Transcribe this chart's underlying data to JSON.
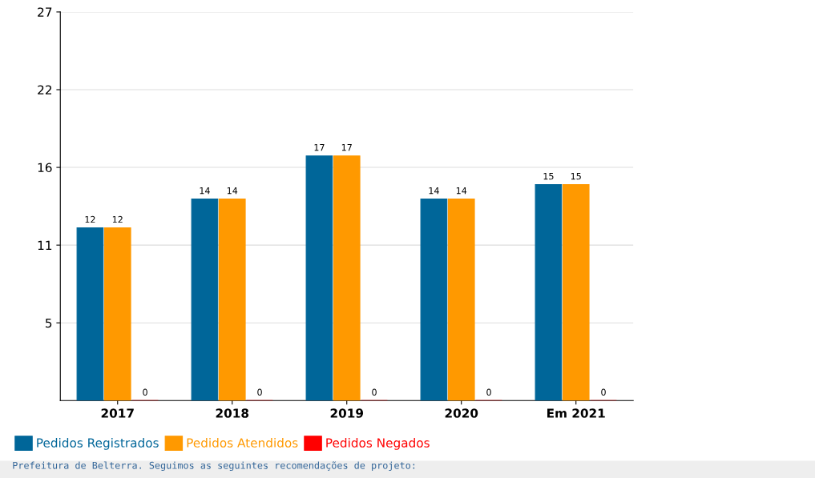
{
  "chart_data": {
    "type": "bar",
    "categories": [
      "2017",
      "2018",
      "2019",
      "2020",
      "Em 2021"
    ],
    "series": [
      {
        "name": "Pedidos Registrados",
        "color": "#006699",
        "values": [
          12,
          14,
          17,
          14,
          15
        ]
      },
      {
        "name": "Pedidos Atendidos",
        "color": "#ff9900",
        "values": [
          12,
          14,
          17,
          14,
          15
        ]
      },
      {
        "name": "Pedidos Negados",
        "color": "#ff0000",
        "values": [
          0,
          0,
          0,
          0,
          0
        ]
      }
    ],
    "ylim": [
      0,
      27
    ],
    "yticks": [
      {
        "value": 5.4,
        "label": "5"
      },
      {
        "value": 10.8,
        "label": "11"
      },
      {
        "value": 16.2,
        "label": "16"
      },
      {
        "value": 21.6,
        "label": "22"
      },
      27
    ],
    "grid": "y",
    "legend": "bottom",
    "data_labels": true,
    "annotations": [
      "Prefeitura de Belterra. Seguimos as seguintes recomendações de projeto:"
    ]
  }
}
